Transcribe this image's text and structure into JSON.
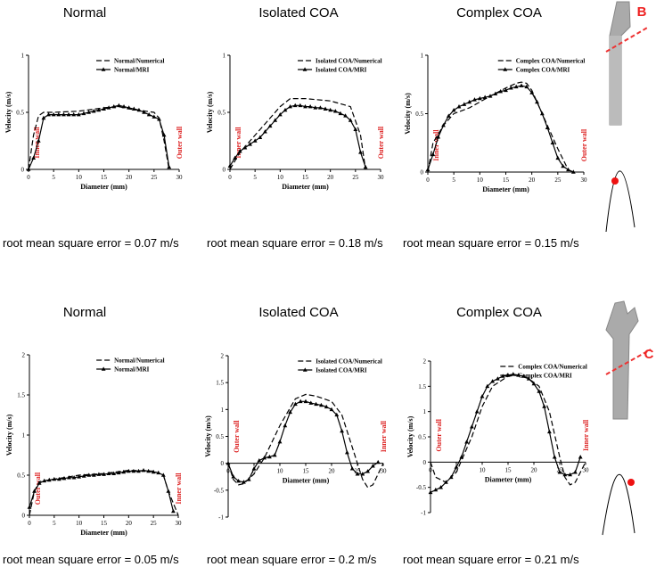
{
  "chart_data": [
    {
      "type": "line",
      "title": "Normal",
      "caption": "root mean square error = 0.07 m/s",
      "xlabel": "Diameter (mm)",
      "ylabel": "Velocity (m/s)",
      "xlim": [
        0,
        30
      ],
      "xticks": [
        0,
        5,
        10,
        15,
        20,
        25,
        30
      ],
      "ylim": [
        0,
        1
      ],
      "yticks": [
        0,
        0.5,
        1
      ],
      "legend": "upper right",
      "annotations": [
        "Inner wall",
        "Outer wall"
      ],
      "series": [
        {
          "name": "Normal/Numerical",
          "color": "#000000",
          "dashed": true,
          "x": [
            0,
            1,
            2,
            3,
            5,
            10,
            15,
            18,
            20,
            25,
            26,
            27,
            28
          ],
          "values": [
            0,
            0.3,
            0.47,
            0.5,
            0.5,
            0.51,
            0.54,
            0.55,
            0.53,
            0.5,
            0.45,
            0.25,
            0
          ]
        },
        {
          "name": "Normal/MRI",
          "color": "#000000",
          "dashed": false,
          "x": [
            0,
            1,
            2,
            3,
            4,
            5,
            6,
            7,
            8,
            9,
            10,
            11,
            12,
            13,
            14,
            15,
            16,
            17,
            18,
            19,
            20,
            21,
            22,
            23,
            24,
            25,
            26,
            27,
            28
          ],
          "values": [
            0,
            0.1,
            0.25,
            0.45,
            0.48,
            0.48,
            0.48,
            0.48,
            0.48,
            0.48,
            0.48,
            0.49,
            0.5,
            0.51,
            0.52,
            0.53,
            0.54,
            0.55,
            0.56,
            0.55,
            0.54,
            0.53,
            0.52,
            0.5,
            0.48,
            0.46,
            0.44,
            0.3,
            0.02
          ]
        }
      ]
    },
    {
      "type": "line",
      "title": "Isolated COA",
      "caption": "root mean square error = 0.18 m/s",
      "xlabel": "Diameter (mm)",
      "ylabel": "Velocity (m/s)",
      "xlim": [
        0,
        30
      ],
      "xticks": [
        0,
        5,
        10,
        15,
        20,
        25,
        30
      ],
      "ylim": [
        0,
        1
      ],
      "yticks": [
        0,
        0.5,
        1
      ],
      "legend": "upper right",
      "annotations": [
        "Inner wall",
        "Outer wall"
      ],
      "series": [
        {
          "name": "Isolated COA/Numerical",
          "color": "#000000",
          "dashed": true,
          "x": [
            0,
            2,
            5,
            8,
            10,
            12,
            15,
            20,
            24,
            26,
            27
          ],
          "values": [
            0,
            0.15,
            0.3,
            0.45,
            0.55,
            0.62,
            0.62,
            0.6,
            0.55,
            0.3,
            0
          ]
        },
        {
          "name": "Isolated COA/MRI",
          "color": "#000000",
          "dashed": false,
          "x": [
            0,
            1,
            2,
            3,
            4,
            5,
            6,
            7,
            8,
            9,
            10,
            11,
            12,
            13,
            14,
            15,
            16,
            17,
            18,
            19,
            20,
            21,
            22,
            23,
            24,
            25,
            26,
            27
          ],
          "values": [
            0.03,
            0.1,
            0.16,
            0.19,
            0.22,
            0.25,
            0.28,
            0.33,
            0.38,
            0.43,
            0.48,
            0.52,
            0.55,
            0.56,
            0.56,
            0.55,
            0.55,
            0.54,
            0.54,
            0.53,
            0.52,
            0.51,
            0.49,
            0.47,
            0.43,
            0.35,
            0.15,
            0.02
          ]
        }
      ]
    },
    {
      "type": "line",
      "title": "Complex COA",
      "caption": "root mean square error = 0.15 m/s",
      "xlabel": "Diameter (mm)",
      "ylabel": "Velocity (m/s)",
      "xlim": [
        0,
        30
      ],
      "xticks": [
        0,
        5,
        10,
        15,
        20,
        25,
        30
      ],
      "ylim": [
        0,
        1
      ],
      "yticks": [
        0,
        0.5,
        1
      ],
      "legend": "upper right",
      "annotations": [
        "Inner wall",
        "Outer wall"
      ],
      "series": [
        {
          "name": "Complex COA/Numerical",
          "color": "#000000",
          "dashed": true,
          "x": [
            0,
            1,
            3,
            5,
            8,
            10,
            12,
            15,
            17,
            18,
            19,
            20,
            22,
            25,
            27,
            28
          ],
          "values": [
            0,
            0.25,
            0.4,
            0.5,
            0.55,
            0.6,
            0.65,
            0.72,
            0.76,
            0.77,
            0.76,
            0.7,
            0.5,
            0.2,
            0.02,
            0
          ]
        },
        {
          "name": "Complex COA/MRI",
          "color": "#000000",
          "dashed": false,
          "x": [
            0,
            1,
            2,
            3,
            4,
            5,
            6,
            7,
            8,
            9,
            10,
            11,
            12,
            13,
            14,
            15,
            16,
            17,
            18,
            19,
            20,
            21,
            22,
            23,
            24,
            25,
            26,
            27,
            28
          ],
          "values": [
            0.02,
            0.15,
            0.3,
            0.4,
            0.48,
            0.53,
            0.56,
            0.58,
            0.6,
            0.62,
            0.63,
            0.64,
            0.65,
            0.67,
            0.69,
            0.7,
            0.72,
            0.73,
            0.74,
            0.73,
            0.68,
            0.6,
            0.5,
            0.38,
            0.25,
            0.12,
            0.05,
            0.02,
            0
          ]
        }
      ]
    },
    {
      "type": "line",
      "title": "Normal",
      "caption": "root mean square error = 0.05 m/s",
      "xlabel": "Diameter (mm)",
      "ylabel": "Velocity (m/s)",
      "xlim": [
        0,
        30
      ],
      "xticks": [
        0,
        5,
        10,
        15,
        20,
        25,
        30
      ],
      "ylim": [
        0,
        2
      ],
      "yticks": [
        0,
        0.5,
        1,
        1.5,
        2
      ],
      "legend": "upper right",
      "annotations": [
        "Outer wall",
        "Inner wall"
      ],
      "series": [
        {
          "name": "Normal/Numerical",
          "color": "#000000",
          "dashed": true,
          "x": [
            0,
            1,
            2,
            5,
            10,
            15,
            20,
            25,
            27,
            28,
            30
          ],
          "values": [
            0,
            0.3,
            0.42,
            0.45,
            0.5,
            0.52,
            0.56,
            0.55,
            0.5,
            0.3,
            0
          ]
        },
        {
          "name": "Normal/MRI",
          "color": "#000000",
          "dashed": false,
          "x": [
            0,
            1,
            2,
            3,
            4,
            5,
            6,
            7,
            8,
            9,
            10,
            11,
            12,
            13,
            14,
            15,
            16,
            17,
            18,
            19,
            20,
            21,
            22,
            23,
            24,
            25,
            26,
            27,
            28,
            29
          ],
          "values": [
            0.1,
            0.3,
            0.4,
            0.43,
            0.44,
            0.45,
            0.45,
            0.46,
            0.47,
            0.47,
            0.48,
            0.49,
            0.5,
            0.5,
            0.51,
            0.51,
            0.52,
            0.52,
            0.53,
            0.54,
            0.55,
            0.55,
            0.55,
            0.56,
            0.55,
            0.54,
            0.53,
            0.5,
            0.3,
            0.05
          ]
        }
      ]
    },
    {
      "type": "line",
      "title": "Isolated COA",
      "caption": "root mean square error = 0.2 m/s",
      "xlabel": "Diameter (mm)",
      "ylabel": "Velocity (m/s)",
      "xlim": [
        0,
        30
      ],
      "xticks": [
        0,
        5,
        10,
        15,
        20,
        25,
        30
      ],
      "ylim": [
        -1,
        2
      ],
      "yticks": [
        -1,
        -0.5,
        0,
        0.5,
        1,
        1.5,
        2
      ],
      "legend": "upper right",
      "annotations": [
        "Outer wall",
        "Inner wall"
      ],
      "series": [
        {
          "name": "Isolated COA/Numerical",
          "color": "#000000",
          "dashed": true,
          "x": [
            0,
            1,
            2,
            3,
            5,
            7,
            10,
            13,
            15,
            17,
            20,
            22,
            24,
            26,
            27,
            28,
            29,
            30
          ],
          "values": [
            0,
            -0.3,
            -0.4,
            -0.38,
            -0.2,
            0.1,
            0.7,
            1.2,
            1.28,
            1.25,
            1.15,
            0.9,
            0.3,
            -0.3,
            -0.45,
            -0.4,
            -0.2,
            0
          ]
        },
        {
          "name": "Isolated COA/MRI",
          "color": "#000000",
          "dashed": false,
          "x": [
            0,
            1,
            2,
            3,
            4,
            5,
            6,
            7,
            8,
            9,
            10,
            11,
            12,
            13,
            14,
            15,
            16,
            17,
            18,
            19,
            20,
            21,
            22,
            23,
            24,
            25,
            26,
            27,
            28,
            29
          ],
          "values": [
            0,
            -0.25,
            -0.33,
            -0.35,
            -0.3,
            -0.1,
            0.05,
            0.1,
            0.12,
            0.15,
            0.4,
            0.7,
            0.95,
            1.1,
            1.15,
            1.15,
            1.12,
            1.1,
            1.08,
            1.05,
            1.0,
            0.9,
            0.6,
            0.2,
            -0.1,
            -0.2,
            -0.2,
            -0.15,
            -0.05,
            0.02
          ]
        }
      ]
    },
    {
      "type": "line",
      "title": "Complex COA",
      "caption": "root mean square error = 0.21 m/s",
      "xlabel": "Diameter (mm)",
      "ylabel": "Velocity (m/s)",
      "xlim": [
        0,
        30
      ],
      "xticks": [
        0,
        5,
        10,
        15,
        20,
        25,
        30
      ],
      "ylim": [
        -1,
        2
      ],
      "yticks": [
        -1,
        -0.5,
        0,
        0.5,
        1,
        1.5,
        2
      ],
      "legend": "upper right",
      "annotations": [
        "Outer wall",
        "Inner wall"
      ],
      "series": [
        {
          "name": "Complex COA/Numerical",
          "color": "#000000",
          "dashed": true,
          "x": [
            0,
            1,
            3,
            5,
            8,
            10,
            12,
            15,
            17,
            19,
            21,
            23,
            25,
            26,
            27,
            28,
            29,
            30
          ],
          "values": [
            0,
            -0.3,
            -0.4,
            -0.2,
            0.5,
            1.1,
            1.5,
            1.7,
            1.72,
            1.65,
            1.5,
            1.0,
            0.1,
            -0.3,
            -0.45,
            -0.4,
            -0.2,
            0
          ]
        },
        {
          "name": "Complex COA/MRI",
          "color": "#000000",
          "dashed": false,
          "x": [
            0,
            1,
            2,
            3,
            4,
            5,
            6,
            7,
            8,
            9,
            10,
            11,
            12,
            13,
            14,
            15,
            16,
            17,
            18,
            19,
            20,
            21,
            22,
            23,
            24,
            25,
            26,
            27,
            28,
            29
          ],
          "values": [
            -0.6,
            -0.55,
            -0.5,
            -0.4,
            -0.3,
            -0.1,
            0.1,
            0.4,
            0.7,
            1.0,
            1.3,
            1.5,
            1.6,
            1.65,
            1.7,
            1.72,
            1.74,
            1.72,
            1.7,
            1.65,
            1.55,
            1.4,
            1.1,
            0.6,
            0.1,
            -0.2,
            -0.25,
            -0.25,
            -0.2,
            0.1
          ]
        }
      ]
    }
  ],
  "panel_labels": [
    "B",
    "C"
  ]
}
